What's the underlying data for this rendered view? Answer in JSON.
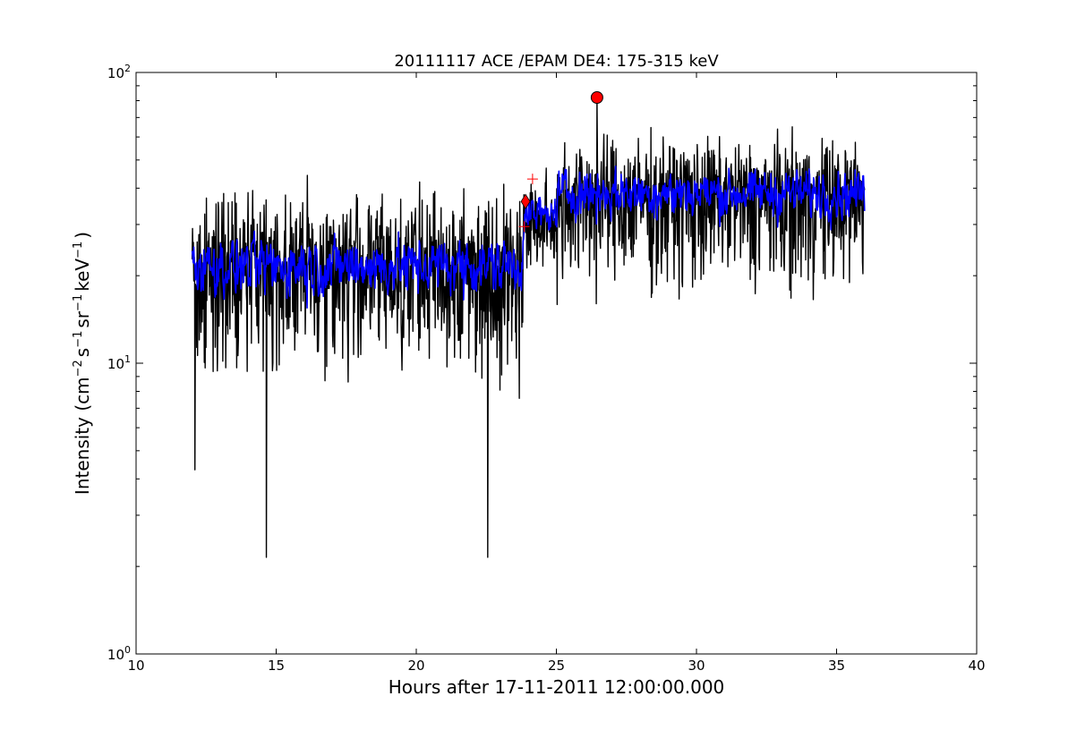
{
  "chart_data": {
    "type": "line",
    "title": "20111117 ACE /EPAM DE4: 175-315 keV",
    "xlabel": "Hours after 17-11-2011 12:00:00.000",
    "ylabel": {
      "prefix": "Intensity (cm",
      "sup1": "−2",
      "mid1": "s",
      "sup2": "−1",
      "mid2": "sr",
      "sup3": "−1",
      "mid3": "keV",
      "sup4": "−1",
      "suffix": ")"
    },
    "xlim": [
      10,
      40
    ],
    "ylim": [
      1,
      100
    ],
    "yscale": "log",
    "grid": false,
    "x_ticks": [
      10,
      15,
      20,
      25,
      30,
      35,
      40
    ],
    "x_tick_labels": [
      "10",
      "15",
      "20",
      "25",
      "30",
      "35",
      "40"
    ],
    "y_major_ticks": [
      1,
      10,
      100
    ],
    "y_tick_labels": [
      {
        "base": "10",
        "exp": "0"
      },
      {
        "base": "10",
        "exp": "1"
      },
      {
        "base": "10",
        "exp": "2"
      }
    ],
    "series": [
      {
        "color": "#000000",
        "style": "raw intensity",
        "x_range": [
          12.0,
          36.0
        ],
        "phases": [
          {
            "x_start": 12.0,
            "x_end": 23.8,
            "center": 22,
            "min": 6.5,
            "max": 48
          },
          {
            "x_start": 23.8,
            "x_end": 25.0,
            "center": 30,
            "min": 17,
            "max": 50
          },
          {
            "x_start": 25.0,
            "x_end": 36.0,
            "center": 38,
            "min": 13,
            "max": 70
          }
        ],
        "spikes": [
          {
            "x": 12.1,
            "y": 4.3
          },
          {
            "x": 14.65,
            "y": 2.15
          },
          {
            "x": 22.55,
            "y": 2.15
          },
          {
            "x": 26.45,
            "y": 82
          }
        ]
      },
      {
        "color": "#0000ff",
        "style": "smoothed intensity",
        "x_range": [
          12.0,
          36.0
        ],
        "phases": [
          {
            "x_start": 12.0,
            "x_end": 23.8,
            "center": 22,
            "min": 13,
            "max": 33
          },
          {
            "x_start": 23.8,
            "x_end": 25.0,
            "center": 32,
            "min": 25,
            "max": 45
          },
          {
            "x_start": 25.0,
            "x_end": 36.0,
            "center": 39,
            "min": 25,
            "max": 55
          }
        ]
      }
    ],
    "markers": [
      {
        "shape": "circle",
        "x": 26.45,
        "y": 82,
        "color": "#ff0000"
      },
      {
        "shape": "diamond",
        "x": 23.9,
        "y": 36,
        "color": "#ff0000"
      },
      {
        "shape": "plus",
        "x": 24.15,
        "y": 43,
        "color": "#ff0000"
      },
      {
        "shape": "plus",
        "x": 23.85,
        "y": 29.5,
        "color": "#ff0000"
      }
    ]
  }
}
